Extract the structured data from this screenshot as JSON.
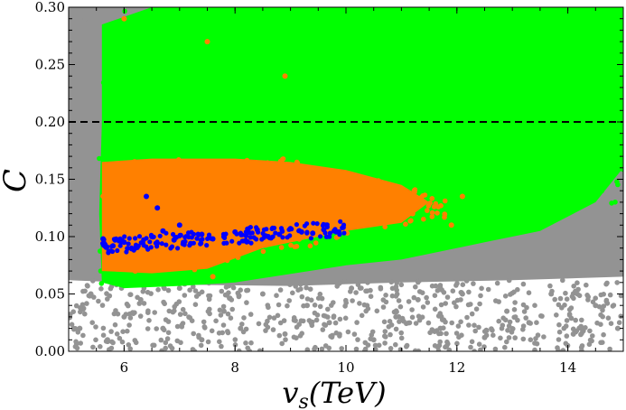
{
  "chart_data": {
    "type": "scatter",
    "title": "",
    "xlabel": "v_s(TeV)",
    "xlabel_main": "v",
    "xlabel_sub": "s",
    "xlabel_paren": "(TeV)",
    "ylabel": "C",
    "xlim": [
      5.0,
      15.0
    ],
    "ylim": [
      0.0,
      0.3
    ],
    "xticks": [
      6,
      8,
      10,
      12,
      14
    ],
    "yticks": [
      0.0,
      0.05,
      0.1,
      0.15,
      0.2,
      0.25,
      0.3
    ],
    "xtick_labels": [
      "6",
      "8",
      "10",
      "12",
      "14"
    ],
    "ytick_labels": [
      "0.00",
      "0.05",
      "0.10",
      "0.15",
      "0.20",
      "0.25",
      "0.30"
    ],
    "grid": false,
    "legend": "none",
    "reference_line": {
      "y": 0.2,
      "style": "dashed",
      "color": "#000000"
    },
    "series": [
      {
        "color": "#939393",
        "region": "dense band x 5.0-15.0, C 0.05-0.30 plus sparse scatter down to 0.00",
        "values": [
          [
            5.2,
            0.02
          ],
          [
            5.4,
            0.05
          ],
          [
            5.7,
            0.01
          ],
          [
            6.0,
            0.03
          ],
          [
            6.3,
            0.045
          ],
          [
            6.7,
            0.02
          ],
          [
            7.0,
            0.055
          ],
          [
            7.4,
            0.01
          ],
          [
            7.8,
            0.035
          ],
          [
            8.1,
            0.02
          ],
          [
            8.5,
            0.05
          ],
          [
            8.9,
            0.015
          ],
          [
            9.3,
            0.04
          ],
          [
            9.7,
            0.025
          ],
          [
            10.1,
            0.055
          ],
          [
            10.5,
            0.01
          ],
          [
            10.9,
            0.03
          ],
          [
            11.3,
            0.045
          ],
          [
            11.7,
            0.02
          ],
          [
            12.1,
            0.05
          ],
          [
            12.5,
            0.012
          ],
          [
            12.9,
            0.035
          ],
          [
            13.3,
            0.025
          ],
          [
            13.7,
            0.05
          ],
          [
            14.1,
            0.015
          ],
          [
            14.5,
            0.04
          ],
          [
            14.9,
            0.02
          ],
          [
            5.3,
            0.29
          ],
          [
            14.8,
            0.29
          ],
          [
            5.1,
            0.15
          ],
          [
            14.9,
            0.1
          ]
        ]
      },
      {
        "color": "#00ff00",
        "region": "band x 5.6-15.0, C 0.055-0.30",
        "values": [
          [
            5.8,
            0.06
          ],
          [
            6.5,
            0.28
          ],
          [
            7.5,
            0.07
          ],
          [
            8.5,
            0.26
          ],
          [
            9.5,
            0.08
          ],
          [
            10.5,
            0.24
          ],
          [
            11.5,
            0.1
          ],
          [
            12.5,
            0.22
          ],
          [
            13.5,
            0.12
          ],
          [
            14.5,
            0.18
          ]
        ]
      },
      {
        "color": "#ff8000",
        "region": "band x 5.6-12.2, C 0.065-0.165",
        "values": [
          [
            5.7,
            0.16
          ],
          [
            6.2,
            0.07
          ],
          [
            7.2,
            0.15
          ],
          [
            7.6,
            0.065
          ],
          [
            8.6,
            0.14
          ],
          [
            9.3,
            0.155
          ],
          [
            10.4,
            0.13
          ],
          [
            11.2,
            0.12
          ],
          [
            11.9,
            0.11
          ],
          [
            12.1,
            0.135
          ],
          [
            6.0,
            0.29
          ],
          [
            7.5,
            0.27
          ],
          [
            8.9,
            0.24
          ]
        ]
      },
      {
        "color": "#0000ff",
        "region": "tight band x 5.6-10.0, C 0.09-0.115",
        "values": [
          [
            5.62,
            0.098
          ],
          [
            5.8,
            0.092
          ],
          [
            6.0,
            0.095
          ],
          [
            6.2,
            0.09
          ],
          [
            6.4,
            0.135
          ],
          [
            6.5,
            0.1
          ],
          [
            6.6,
            0.125
          ],
          [
            6.7,
            0.105
          ],
          [
            6.9,
            0.097
          ],
          [
            7.0,
            0.11
          ],
          [
            7.2,
            0.094
          ],
          [
            7.4,
            0.102
          ],
          [
            7.6,
            0.098
          ],
          [
            7.8,
            0.1
          ],
          [
            8.0,
            0.104
          ],
          [
            8.2,
            0.101
          ],
          [
            8.4,
            0.106
          ],
          [
            8.6,
            0.1
          ],
          [
            8.8,
            0.102
          ],
          [
            9.0,
            0.107
          ],
          [
            9.2,
            0.104
          ],
          [
            9.4,
            0.103
          ],
          [
            9.6,
            0.106
          ],
          [
            9.8,
            0.105
          ],
          [
            9.95,
            0.108
          ]
        ]
      }
    ]
  }
}
